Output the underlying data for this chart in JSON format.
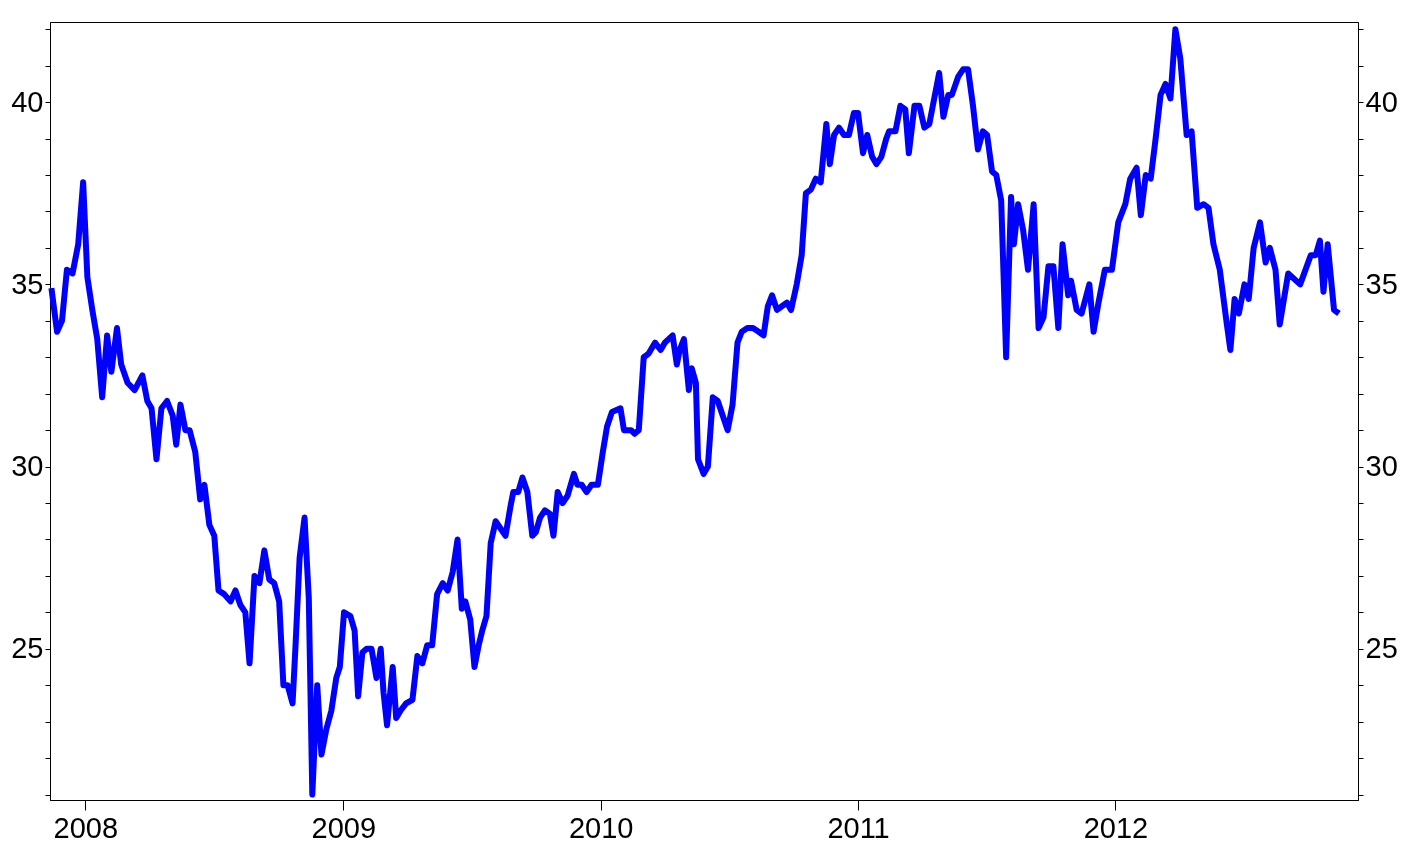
{
  "chart_data": {
    "type": "line",
    "x": [
      "2007-11-14",
      "2007-11-22",
      "2007-11-29",
      "2007-12-06",
      "2007-12-14",
      "2007-12-22",
      "2007-12-29",
      "2008-01-04",
      "2008-01-11",
      "2008-01-18",
      "2008-01-25",
      "2008-02-01",
      "2008-02-07",
      "2008-02-15",
      "2008-02-21",
      "2008-03-01",
      "2008-03-11",
      "2008-03-22",
      "2008-03-29",
      "2008-04-04",
      "2008-04-11",
      "2008-04-18",
      "2008-04-26",
      "2008-05-04",
      "2008-05-09",
      "2008-05-15",
      "2008-05-22",
      "2008-05-28",
      "2008-06-05",
      "2008-06-12",
      "2008-06-18",
      "2008-06-25",
      "2008-07-02",
      "2008-07-08",
      "2008-07-16",
      "2008-07-25",
      "2008-08-01",
      "2008-08-08",
      "2008-08-15",
      "2008-08-21",
      "2008-08-28",
      "2008-09-04",
      "2008-09-11",
      "2008-09-18",
      "2008-09-25",
      "2008-10-02",
      "2008-10-08",
      "2008-10-14",
      "2008-10-21",
      "2008-10-25",
      "2008-10-31",
      "2008-11-07",
      "2008-11-13",
      "2008-11-18",
      "2008-11-25",
      "2008-12-01",
      "2008-12-08",
      "2008-12-15",
      "2008-12-22",
      "2008-12-27",
      "2009-01-02",
      "2009-01-11",
      "2009-01-17",
      "2009-01-22",
      "2009-01-28",
      "2009-02-03",
      "2009-02-10",
      "2009-02-17",
      "2009-02-23",
      "2009-02-27",
      "2009-03-04",
      "2009-03-12",
      "2009-03-17",
      "2009-03-23",
      "2009-03-31",
      "2009-04-09",
      "2009-04-16",
      "2009-04-23",
      "2009-04-30",
      "2009-05-07",
      "2009-05-14",
      "2009-05-22",
      "2009-05-29",
      "2009-06-05",
      "2009-06-12",
      "2009-06-18",
      "2009-06-23",
      "2009-06-30",
      "2009-07-06",
      "2009-07-12",
      "2009-07-17",
      "2009-07-23",
      "2009-07-29",
      "2009-08-05",
      "2009-08-12",
      "2009-08-19",
      "2009-08-26",
      "2009-08-30",
      "2009-09-06",
      "2009-09-12",
      "2009-09-19",
      "2009-09-26",
      "2009-10-01",
      "2009-10-07",
      "2009-10-14",
      "2009-10-21",
      "2009-10-26",
      "2009-11-01",
      "2009-11-08",
      "2009-11-15",
      "2009-11-24",
      "2009-11-29",
      "2009-12-05",
      "2009-12-12",
      "2009-12-19",
      "2009-12-28",
      "2010-01-04",
      "2010-01-10",
      "2010-01-17",
      "2010-01-29",
      "2010-02-03",
      "2010-02-13",
      "2010-02-18",
      "2010-02-24",
      "2010-03-03",
      "2010-03-10",
      "2010-03-19",
      "2010-03-27",
      "2010-04-02",
      "2010-04-13",
      "2010-04-19",
      "2010-04-23",
      "2010-04-29",
      "2010-05-06",
      "2010-05-10",
      "2010-05-16",
      "2010-05-19",
      "2010-05-27",
      "2010-06-02",
      "2010-06-09",
      "2010-06-16",
      "2010-06-23",
      "2010-06-30",
      "2010-07-07",
      "2010-07-14",
      "2010-07-20",
      "2010-07-28",
      "2010-08-05",
      "2010-08-13",
      "2010-08-20",
      "2010-08-26",
      "2010-09-01",
      "2010-09-08",
      "2010-09-15",
      "2010-09-22",
      "2010-09-28",
      "2010-10-06",
      "2010-10-13",
      "2010-10-19",
      "2010-10-26",
      "2010-11-02",
      "2010-11-09",
      "2010-11-17",
      "2010-11-22",
      "2010-11-28",
      "2010-12-05",
      "2010-12-12",
      "2010-12-19",
      "2010-12-26",
      "2011-01-01",
      "2011-01-08",
      "2011-01-14",
      "2011-01-21",
      "2011-01-27",
      "2011-02-03",
      "2011-02-10",
      "2011-02-14",
      "2011-02-23",
      "2011-03-02",
      "2011-03-09",
      "2011-03-14",
      "2011-03-22",
      "2011-03-29",
      "2011-04-05",
      "2011-04-12",
      "2011-04-19",
      "2011-04-26",
      "2011-05-02",
      "2011-05-09",
      "2011-05-14",
      "2011-05-23",
      "2011-05-30",
      "2011-06-06",
      "2011-06-13",
      "2011-06-20",
      "2011-06-27",
      "2011-07-03",
      "2011-07-10",
      "2011-07-16",
      "2011-07-23",
      "2011-07-30",
      "2011-08-06",
      "2011-08-10",
      "2011-08-16",
      "2011-08-23",
      "2011-08-30",
      "2011-09-07",
      "2011-09-14",
      "2011-09-21",
      "2011-09-28",
      "2011-10-05",
      "2011-10-12",
      "2011-10-18",
      "2011-10-26",
      "2011-10-30",
      "2011-11-07",
      "2011-11-14",
      "2011-11-25",
      "2011-12-01",
      "2011-12-08",
      "2011-12-17",
      "2011-12-27",
      "2012-01-05",
      "2012-01-15",
      "2012-01-22",
      "2012-01-31",
      "2012-02-06",
      "2012-02-13",
      "2012-02-20",
      "2012-02-27",
      "2012-03-05",
      "2012-03-12",
      "2012-03-19",
      "2012-03-26",
      "2012-04-02",
      "2012-04-11",
      "2012-04-18",
      "2012-04-26",
      "2012-05-05",
      "2012-05-12",
      "2012-05-19",
      "2012-05-28",
      "2012-06-07",
      "2012-06-12",
      "2012-06-18",
      "2012-06-24",
      "2012-07-02",
      "2012-07-08",
      "2012-07-15",
      "2012-07-24",
      "2012-08-01",
      "2012-08-07",
      "2012-08-15",
      "2012-08-21",
      "2012-09-02",
      "2012-09-19",
      "2012-10-04",
      "2012-10-11",
      "2012-10-17",
      "2012-10-22",
      "2012-10-28",
      "2012-11-06",
      "2012-11-13"
    ],
    "series": [
      {
        "color": "#0000ff",
        "values": [
          34.9,
          33.7,
          34.0,
          35.4,
          35.3,
          36.1,
          37.8,
          35.2,
          34.3,
          33.5,
          31.9,
          33.6,
          32.6,
          33.8,
          32.8,
          32.3,
          32.1,
          32.5,
          31.8,
          31.6,
          30.2,
          31.6,
          31.8,
          31.4,
          30.6,
          31.7,
          31.0,
          31.0,
          30.4,
          29.1,
          29.5,
          28.4,
          28.1,
          26.6,
          26.5,
          26.3,
          26.6,
          26.2,
          26.0,
          24.6,
          27.0,
          26.8,
          27.7,
          26.9,
          26.8,
          26.3,
          24.0,
          24.0,
          23.5,
          25.0,
          27.5,
          28.6,
          26.4,
          21.0,
          24.0,
          22.1,
          22.8,
          23.3,
          24.2,
          24.5,
          26.0,
          25.9,
          25.5,
          23.7,
          24.9,
          25.0,
          25.0,
          24.2,
          25.0,
          23.8,
          22.9,
          24.5,
          23.1,
          23.3,
          23.5,
          23.6,
          24.8,
          24.6,
          25.1,
          25.1,
          26.5,
          26.8,
          26.6,
          27.1,
          28.0,
          26.1,
          26.3,
          25.8,
          24.5,
          25.1,
          25.5,
          25.9,
          27.9,
          28.5,
          28.3,
          28.1,
          28.9,
          29.3,
          29.3,
          29.7,
          29.3,
          28.1,
          28.2,
          28.6,
          28.8,
          28.7,
          28.1,
          29.3,
          29.0,
          29.2,
          29.8,
          29.5,
          29.5,
          29.3,
          29.5,
          29.5,
          30.4,
          31.1,
          31.5,
          31.6,
          31.0,
          31.0,
          30.9,
          31.0,
          33.0,
          33.1,
          33.4,
          33.2,
          33.4,
          33.6,
          32.8,
          33.2,
          33.5,
          32.1,
          32.7,
          32.3,
          30.2,
          29.8,
          30.0,
          31.9,
          31.8,
          31.4,
          31.0,
          31.7,
          33.4,
          33.7,
          33.8,
          33.8,
          33.7,
          33.6,
          34.4,
          34.7,
          34.3,
          34.4,
          34.5,
          34.3,
          35.0,
          35.8,
          37.5,
          37.6,
          37.9,
          37.8,
          39.4,
          38.3,
          39.1,
          39.3,
          39.1,
          39.1,
          39.7,
          39.7,
          38.6,
          39.1,
          38.5,
          38.3,
          38.5,
          39.0,
          39.2,
          39.2,
          39.9,
          39.8,
          38.6,
          39.9,
          39.9,
          39.3,
          39.4,
          40.1,
          40.8,
          39.6,
          40.2,
          40.2,
          40.7,
          40.9,
          40.9,
          39.9,
          38.7,
          39.2,
          39.1,
          38.1,
          38.0,
          37.3,
          33.0,
          37.4,
          36.1,
          37.2,
          36.5,
          35.4,
          37.2,
          33.8,
          34.1,
          35.5,
          35.5,
          33.8,
          36.1,
          34.7,
          35.1,
          34.3,
          34.2,
          35.0,
          33.7,
          34.5,
          35.4,
          35.4,
          36.7,
          37.2,
          37.9,
          38.2,
          36.9,
          38.0,
          37.9,
          39.0,
          40.2,
          40.5,
          40.1,
          42.0,
          41.2,
          39.1,
          39.2,
          37.1,
          37.2,
          37.1,
          36.1,
          35.4,
          33.9,
          33.2,
          34.6,
          34.2,
          35.0,
          34.6,
          36.0,
          36.7,
          35.6,
          36.0,
          35.4,
          33.9,
          35.3,
          35.0,
          35.8,
          35.8,
          36.2,
          34.8,
          36.1,
          34.3,
          34.2
        ]
      }
    ],
    "xlim": [
      "2007-11-12",
      "2012-12-10"
    ],
    "xticks": [
      {
        "value": "2008-01-01",
        "label": "2008"
      },
      {
        "value": "2009-01-01",
        "label": "2009"
      },
      {
        "value": "2010-01-01",
        "label": "2010"
      },
      {
        "value": "2011-01-01",
        "label": "2011"
      },
      {
        "value": "2012-01-01",
        "label": "2012"
      }
    ],
    "ylim": [
      20.85,
      42.2
    ],
    "yticks": [
      {
        "value": 21,
        "label": null
      },
      {
        "value": 22,
        "label": null
      },
      {
        "value": 23,
        "label": null
      },
      {
        "value": 24,
        "label": null
      },
      25,
      {
        "value": 26,
        "label": null
      },
      {
        "value": 27,
        "label": null
      },
      {
        "value": 28,
        "label": null
      },
      {
        "value": 29,
        "label": null
      },
      30,
      {
        "value": 31,
        "label": null
      },
      {
        "value": 32,
        "label": null
      },
      {
        "value": 33,
        "label": null
      },
      {
        "value": 34,
        "label": null
      },
      35,
      {
        "value": 36,
        "label": null
      },
      {
        "value": 37,
        "label": null
      },
      {
        "value": 38,
        "label": null
      },
      {
        "value": 39,
        "label": null
      },
      40,
      {
        "value": 41,
        "label": null
      },
      {
        "value": 42,
        "label": null
      }
    ],
    "y2lim": [
      20.85,
      42.2
    ],
    "y2ticks": [
      {
        "value": 21,
        "label": null
      },
      {
        "value": 22,
        "label": null
      },
      {
        "value": 23,
        "label": null
      },
      {
        "value": 24,
        "label": null
      },
      25,
      {
        "value": 26,
        "label": null
      },
      {
        "value": 27,
        "label": null
      },
      {
        "value": 28,
        "label": null
      },
      {
        "value": 29,
        "label": null
      },
      30,
      {
        "value": 31,
        "label": null
      },
      {
        "value": 32,
        "label": null
      },
      {
        "value": 33,
        "label": null
      },
      {
        "value": 34,
        "label": null
      },
      35,
      {
        "value": 36,
        "label": null
      },
      {
        "value": 37,
        "label": null
      },
      {
        "value": 38,
        "label": null
      },
      {
        "value": 39,
        "label": null
      },
      40,
      {
        "value": 41,
        "label": null
      },
      {
        "value": 42,
        "label": null
      }
    ],
    "line_style": "solid",
    "marker": "none",
    "grid": false
  }
}
